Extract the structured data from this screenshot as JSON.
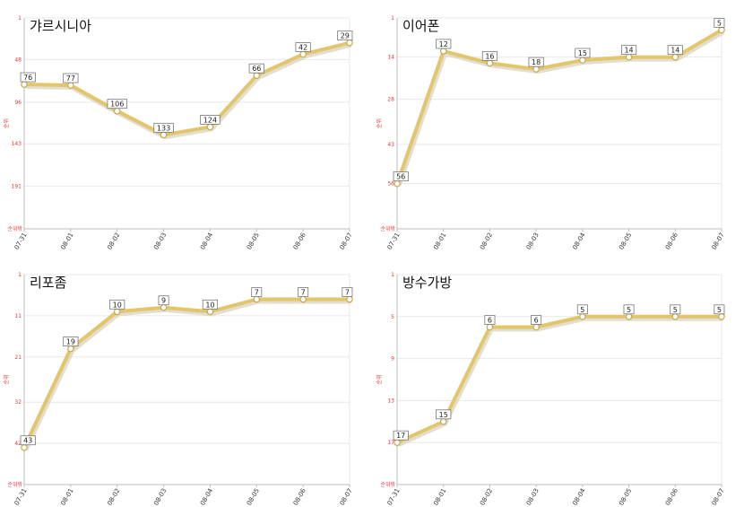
{
  "chart_data": [
    {
      "type": "line",
      "title": "갸르시니아",
      "ylabel": "순위",
      "y_axis_marker": "순위밖",
      "y_reversed": true,
      "ylim": [
        1,
        239
      ],
      "yticks": [
        "1",
        "48",
        "96",
        "143",
        "191"
      ],
      "categories": [
        "07-31",
        "08-01",
        "08-02",
        "08-03",
        "08-04",
        "08-05",
        "08-06",
        "08-07"
      ],
      "values": [
        76,
        77,
        106,
        133,
        124,
        66,
        42,
        29
      ],
      "line_color": "#e3c56a"
    },
    {
      "type": "line",
      "title": "이어폰",
      "ylabel": "순위",
      "y_axis_marker": "순위밖",
      "y_reversed": true,
      "ylim": [
        1,
        71
      ],
      "yticks": [
        "1",
        "14",
        "28",
        "43",
        "56"
      ],
      "categories": [
        "07-31",
        "08-01",
        "08-02",
        "08-03",
        "08-04",
        "08-05",
        "08-06",
        "08-07"
      ],
      "values": [
        56,
        12,
        16,
        18,
        15,
        14,
        14,
        5
      ],
      "line_color": "#e3c56a"
    },
    {
      "type": "line",
      "title": "리포좀",
      "ylabel": "순위",
      "y_axis_marker": "순위밖",
      "y_reversed": true,
      "ylim": [
        1,
        52
      ],
      "yticks": [
        "1",
        "11",
        "21",
        "32",
        "42"
      ],
      "categories": [
        "07-31",
        "08-01",
        "08-02",
        "08-03",
        "08-04",
        "08-05",
        "08-06",
        "08-07"
      ],
      "values": [
        43,
        19,
        10,
        9,
        10,
        7,
        7,
        7
      ],
      "line_color": "#e3c56a"
    },
    {
      "type": "line",
      "title": "방수가방",
      "ylabel": "순위",
      "y_axis_marker": "순위밖",
      "y_reversed": true,
      "ylim": [
        1,
        21
      ],
      "yticks": [
        "1",
        "5",
        "9",
        "13",
        "17"
      ],
      "categories": [
        "07-31",
        "08-01",
        "08-02",
        "08-03",
        "08-04",
        "08-05",
        "08-06",
        "08-07"
      ],
      "values": [
        17,
        15,
        6,
        6,
        5,
        5,
        5,
        5
      ],
      "line_color": "#e3c56a"
    }
  ]
}
